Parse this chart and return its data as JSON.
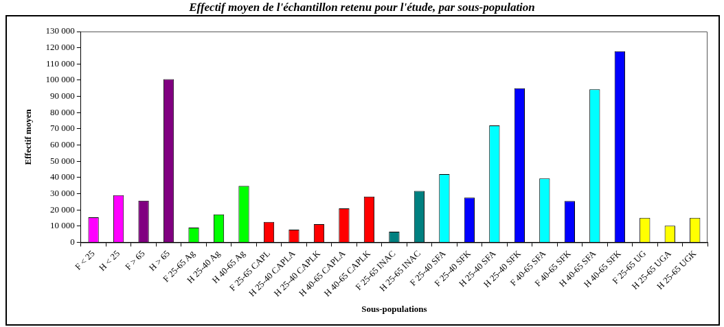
{
  "chart_data": {
    "type": "bar",
    "title": "Effectif moyen de l'échantillon retenu pour l'étude, par sous-population",
    "xlabel": "Sous-populations",
    "ylabel": "Effectif moyen",
    "categories": [
      "F < 25",
      "H < 25",
      "F > 65",
      "H > 65",
      "F 25-65 Ag",
      "H 25-40 Ag",
      "H 40-65 Ag",
      "F 25-65 CAPL",
      "H 25-40 CAPLA",
      "H 25-40 CAPLK",
      "H 40-65 CAPLA",
      "H 40-65 CAPLK",
      "F 25-65 INAC",
      "H 25-65 INAC",
      "F 25-40 SFA",
      "F 25-40 SFK",
      "H 25-40 SFA",
      "H 25-40 SFK",
      "F 40-65 SFA",
      "F 40-65 SFK",
      "H 40-65 SFA",
      "H 40-65 SFK",
      "F 25-65 UG",
      "H 25-65 UGA",
      "H 25-65 UGK"
    ],
    "values": [
      15400,
      29100,
      25700,
      100600,
      9100,
      17300,
      34800,
      12600,
      7800,
      11200,
      20900,
      28200,
      6600,
      31700,
      42100,
      27600,
      72100,
      95000,
      39400,
      25500,
      94400,
      117900,
      15100,
      10300,
      15100
    ],
    "colors": [
      "#ff00ff",
      "#ff00ff",
      "#800080",
      "#800080",
      "#00ff00",
      "#00ff00",
      "#00ff00",
      "#ff0000",
      "#ff0000",
      "#ff0000",
      "#ff0000",
      "#ff0000",
      "#008080",
      "#008080",
      "#00ffff",
      "#0000ff",
      "#00ffff",
      "#0000ff",
      "#00ffff",
      "#0000ff",
      "#00ffff",
      "#0000ff",
      "#ffff00",
      "#ffff00",
      "#ffff00"
    ],
    "ylim": [
      0,
      130000
    ],
    "yticks": [
      {
        "value": 0,
        "label": "0"
      },
      {
        "value": 10000,
        "label": "10 000"
      },
      {
        "value": 20000,
        "label": "20 000"
      },
      {
        "value": 30000,
        "label": "30 000"
      },
      {
        "value": 40000,
        "label": "40 000"
      },
      {
        "value": 50000,
        "label": "50 000"
      },
      {
        "value": 60000,
        "label": "60 000"
      },
      {
        "value": 70000,
        "label": "70 000"
      },
      {
        "value": 80000,
        "label": "80 000"
      },
      {
        "value": 90000,
        "label": "90 000"
      },
      {
        "value": 100000,
        "label": "100 000"
      },
      {
        "value": 110000,
        "label": "110 000"
      },
      {
        "value": 120000,
        "label": "120 000"
      },
      {
        "value": 130000,
        "label": "130 000"
      }
    ],
    "grid": false,
    "legend": false
  }
}
